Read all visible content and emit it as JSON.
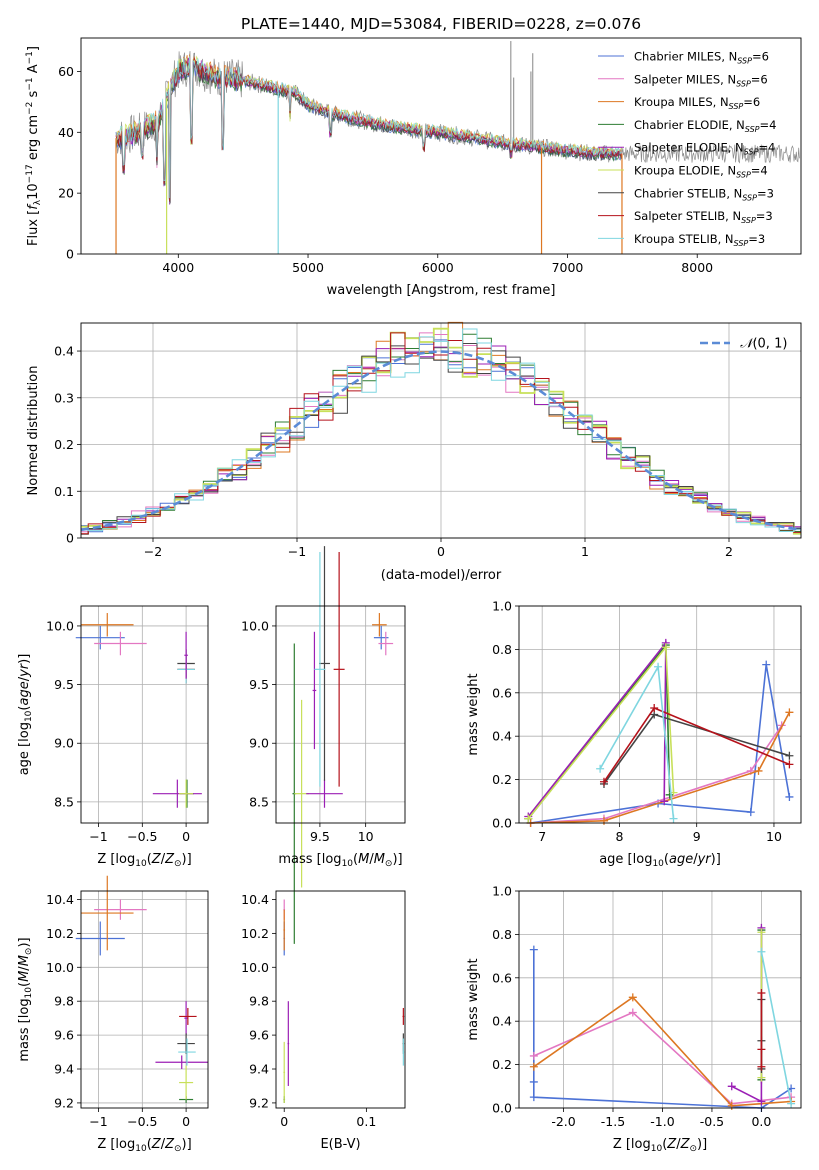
{
  "figure_title": "PLATE=1440, MJD=53084, FIBERID=0228, z=0.076",
  "colors": {
    "chabrier_miles": "#4c72d6",
    "salpeter_miles": "#e377c2",
    "kroupa_miles": "#dd7722",
    "chabrier_elodie": "#2e7d32",
    "salpeter_elodie": "#9b1fb5",
    "kroupa_elodie": "#c8e05a",
    "chabrier_stelib": "#444444",
    "salpeter_stelib": "#b5121b",
    "kroupa_stelib": "#7fd6e0",
    "gaussian": "#5b8bd6",
    "grid": "#b0b0b0"
  },
  "legend_series": [
    {
      "name": "Chabrier MILES, N_SSP=6",
      "color_key": "chabrier_miles"
    },
    {
      "name": "Salpeter MILES, N_SSP=6",
      "color_key": "salpeter_miles"
    },
    {
      "name": "Kroupa MILES, N_SSP=6",
      "color_key": "kroupa_miles"
    },
    {
      "name": "Chabrier ELODIE, N_SSP=4",
      "color_key": "chabrier_elodie"
    },
    {
      "name": "Salpeter ELODIE, N_SSP=4",
      "color_key": "salpeter_elodie"
    },
    {
      "name": "Kroupa ELODIE, N_SSP=4",
      "color_key": "kroupa_elodie"
    },
    {
      "name": "Chabrier STELIB, N_SSP=3",
      "color_key": "chabrier_stelib"
    },
    {
      "name": "Salpeter STELIB, N_SSP=3",
      "color_key": "salpeter_stelib"
    },
    {
      "name": "Kroupa STELIB, N_SSP=3",
      "color_key": "kroupa_stelib"
    }
  ],
  "chart_data": [
    {
      "id": "spectrum",
      "type": "line",
      "xlabel": "wavelength [Angstrom, rest frame]",
      "ylabel": "Flux [f_λ 10^-17 erg cm^-2 s^-1 A^-1]",
      "xlim": [
        3250,
        8800
      ],
      "ylim": [
        0,
        71
      ],
      "xticks": [
        4000,
        5000,
        6000,
        7000,
        8000
      ],
      "yticks": [
        0,
        20,
        40,
        60
      ],
      "grid": false,
      "legend_position": "top-right",
      "continuum": [
        [
          3520,
          38
        ],
        [
          3700,
          40
        ],
        [
          3850,
          44
        ],
        [
          3950,
          56
        ],
        [
          4000,
          60
        ],
        [
          4100,
          62
        ],
        [
          4200,
          60
        ],
        [
          4300,
          58
        ],
        [
          4400,
          58
        ],
        [
          4500,
          57
        ],
        [
          4700,
          55
        ],
        [
          4900,
          53
        ],
        [
          5000,
          49
        ],
        [
          5200,
          46
        ],
        [
          5500,
          43
        ],
        [
          5800,
          41
        ],
        [
          6000,
          40
        ],
        [
          6300,
          38
        ],
        [
          6500,
          36.5
        ],
        [
          6800,
          35
        ],
        [
          7000,
          34
        ],
        [
          7200,
          33
        ],
        [
          7420,
          33
        ]
      ],
      "model_range": [
        3520,
        7420
      ],
      "absorption_dips": [
        [
          3580,
          28
        ],
        [
          3720,
          33
        ],
        [
          3835,
          30
        ],
        [
          3890,
          24
        ],
        [
          3934,
          18
        ],
        [
          4102,
          38
        ],
        [
          4340,
          36
        ],
        [
          4861,
          45
        ],
        [
          5175,
          40
        ],
        [
          5890,
          35
        ],
        [
          6563,
          33
        ]
      ],
      "dropouts": [
        [
          3520,
          0
        ],
        [
          3910,
          0
        ],
        [
          4770,
          0
        ],
        [
          6800,
          0
        ],
        [
          7420,
          0
        ]
      ],
      "spikes": [
        [
          6563,
          70
        ],
        [
          6585,
          58
        ],
        [
          6718,
          60
        ],
        [
          6732,
          66
        ]
      ]
    },
    {
      "id": "residual_hist",
      "type": "histogram",
      "xlabel": "(data-model)/error",
      "ylabel": "Normed distribution",
      "xlim": [
        -2.5,
        2.5
      ],
      "ylim": [
        0,
        0.46
      ],
      "xticks": [
        -2,
        -1,
        0,
        1,
        2
      ],
      "yticks": [
        0,
        0.1,
        0.2,
        0.3,
        0.4
      ],
      "grid": true,
      "legend": "N(0,1)",
      "legend_position": "top-right",
      "bin_width": 0.1,
      "gaussian": {
        "mean": 0,
        "sigma": 1
      }
    },
    {
      "id": "age_vs_Z",
      "type": "errorbar",
      "xlabel": "Z [log10(Z/Z_sun)]",
      "ylabel": "age [log10(age/yr)]",
      "xlim": [
        -1.2,
        0.25
      ],
      "ylim": [
        8.32,
        10.17
      ],
      "xticks": [
        -1.0,
        -0.5,
        0.0
      ],
      "yticks": [
        8.5,
        9.0,
        9.5,
        10.0
      ],
      "grid": true,
      "points": [
        {
          "series": "chabrier_miles",
          "x": -0.98,
          "xerr": 0.28,
          "y": 9.9,
          "yerr": 0.1
        },
        {
          "series": "salpeter_miles",
          "x": -0.75,
          "xerr": 0.3,
          "y": 9.85,
          "yerr": 0.1
        },
        {
          "series": "kroupa_miles",
          "x": -0.9,
          "xerr": 0.3,
          "y": 10.01,
          "yerr": 0.1
        },
        {
          "series": "chabrier_elodie",
          "x": 0.01,
          "xerr": 0.08,
          "y": 8.57,
          "yerr": 0.12
        },
        {
          "series": "salpeter_elodie",
          "x": -0.1,
          "xerr": 0.28,
          "y": 8.57,
          "yerr": 0.12
        },
        {
          "series": "kroupa_elodie",
          "x": 0.0,
          "xerr": 0.08,
          "y": 8.57,
          "yerr": 0.12
        },
        {
          "series": "chabrier_stelib",
          "x": 0.0,
          "xerr": 0.1,
          "y": 9.68,
          "yerr": 0.12
        },
        {
          "series": "salpeter_stelib",
          "x": 0.0,
          "xerr": 0.1,
          "y": 9.63,
          "yerr": 0.12
        },
        {
          "series": "kroupa_stelib",
          "x": 0.0,
          "xerr": 0.1,
          "y": 9.63,
          "yerr": 0.12
        },
        {
          "series": "salpeter_elodie",
          "x": 0.0,
          "xerr": 0.02,
          "y": 9.75,
          "yerr": 0.2
        }
      ]
    },
    {
      "id": "age_vs_mass",
      "type": "errorbar",
      "xlabel": "mass [log10(M/M_sun)]",
      "ylabel": "",
      "xlim": [
        9.02,
        10.43
      ],
      "ylim": [
        8.32,
        10.17
      ],
      "xticks": [
        9.5,
        10.0
      ],
      "yticks": [
        8.5,
        9.0,
        9.5,
        10.0
      ],
      "grid": true,
      "points": [
        {
          "series": "chabrier_miles",
          "x": 10.17,
          "xerr": 0.08,
          "y": 9.9,
          "yerr": 0.1
        },
        {
          "series": "salpeter_miles",
          "x": 10.22,
          "xerr": 0.08,
          "y": 9.85,
          "yerr": 0.1
        },
        {
          "series": "kroupa_miles",
          "x": 10.15,
          "xerr": 0.08,
          "y": 10.01,
          "yerr": 0.1
        },
        {
          "series": "chabrier_elodie",
          "x": 9.22,
          "xerr": 0.02,
          "y": 8.57,
          "yerr": 1.28
        },
        {
          "series": "kroupa_elodie",
          "x": 9.3,
          "xerr": 0.08,
          "y": 8.57,
          "yerr": 0.8
        },
        {
          "series": "salpeter_elodie",
          "x": 9.55,
          "xerr": 0.2,
          "y": 8.57,
          "yerr": 0.12
        },
        {
          "series": "salpeter_elodie",
          "x": 9.44,
          "xerr": 0.02,
          "y": 9.45,
          "yerr": 0.5
        },
        {
          "series": "chabrier_stelib",
          "x": 9.55,
          "xerr": 0.06,
          "y": 9.68,
          "yerr": 1.0
        },
        {
          "series": "salpeter_stelib",
          "x": 9.71,
          "xerr": 0.06,
          "y": 9.63,
          "yerr": 1.0
        },
        {
          "series": "kroupa_stelib",
          "x": 9.5,
          "xerr": 0.06,
          "y": 9.63,
          "yerr": 1.0
        }
      ]
    },
    {
      "id": "massweight_vs_age",
      "type": "line",
      "xlabel": "age [log10(age/yr)]",
      "ylabel": "mass weight",
      "xlim": [
        6.7,
        10.35
      ],
      "ylim": [
        0,
        1.0
      ],
      "xticks": [
        7,
        8,
        9,
        10
      ],
      "yticks": [
        0.0,
        0.2,
        0.4,
        0.6,
        0.8,
        1.0
      ],
      "grid": true,
      "series": [
        {
          "series": "chabrier_miles",
          "points": [
            [
              6.85,
              0.0
            ],
            [
              8.5,
              0.09
            ],
            [
              9.7,
              0.05
            ],
            [
              9.9,
              0.73
            ],
            [
              10.2,
              0.12
            ]
          ]
        },
        {
          "series": "salpeter_miles",
          "points": [
            [
              6.85,
              0.0
            ],
            [
              7.8,
              0.02
            ],
            [
              9.7,
              0.24
            ],
            [
              10.1,
              0.45
            ]
          ]
        },
        {
          "series": "kroupa_miles",
          "points": [
            [
              6.85,
              0.0
            ],
            [
              7.8,
              0.01
            ],
            [
              9.8,
              0.24
            ],
            [
              10.2,
              0.51
            ]
          ]
        },
        {
          "series": "chabrier_elodie",
          "points": [
            [
              6.82,
              0.02
            ],
            [
              8.6,
              0.82
            ],
            [
              8.65,
              0.13
            ]
          ]
        },
        {
          "series": "salpeter_elodie",
          "points": [
            [
              6.82,
              0.03
            ],
            [
              8.6,
              0.83
            ],
            [
              8.58,
              0.1
            ]
          ]
        },
        {
          "series": "kroupa_elodie",
          "points": [
            [
              6.82,
              0.02
            ],
            [
              8.6,
              0.81
            ],
            [
              8.7,
              0.14
            ]
          ]
        },
        {
          "series": "chabrier_stelib",
          "points": [
            [
              7.8,
              0.18
            ],
            [
              8.45,
              0.5
            ],
            [
              10.2,
              0.31
            ]
          ]
        },
        {
          "series": "salpeter_stelib",
          "points": [
            [
              7.8,
              0.19
            ],
            [
              8.45,
              0.53
            ],
            [
              10.2,
              0.27
            ]
          ]
        },
        {
          "series": "kroupa_stelib",
          "points": [
            [
              7.75,
              0.25
            ],
            [
              8.5,
              0.72
            ],
            [
              8.7,
              0.02
            ]
          ]
        }
      ]
    },
    {
      "id": "mass_vs_Z",
      "type": "errorbar",
      "xlabel": "Z [log10(Z/Z_sun)]",
      "ylabel": "mass [log10(M/M_sun)]",
      "xlim": [
        -1.2,
        0.25
      ],
      "ylim": [
        9.17,
        10.45
      ],
      "xticks": [
        -1.0,
        -0.5,
        0.0
      ],
      "yticks": [
        9.2,
        9.4,
        9.6,
        9.8,
        10.0,
        10.2,
        10.4
      ],
      "grid": true,
      "points": [
        {
          "series": "chabrier_miles",
          "x": -0.98,
          "xerr": 0.28,
          "y": 10.17,
          "yerr": 0.1
        },
        {
          "series": "salpeter_miles",
          "x": -0.75,
          "xerr": 0.3,
          "y": 10.34,
          "yerr": 0.06
        },
        {
          "series": "kroupa_miles",
          "x": -0.9,
          "xerr": 0.3,
          "y": 10.32,
          "yerr": 0.22
        },
        {
          "series": "chabrier_elodie",
          "x": 0.0,
          "xerr": 0.08,
          "y": 9.22,
          "yerr": 0.02
        },
        {
          "series": "salpeter_elodie",
          "x": -0.05,
          "xerr": 0.3,
          "y": 9.44,
          "yerr": 0.04
        },
        {
          "series": "salpeter_elodie",
          "x": 0.0,
          "xerr": 0.02,
          "y": 9.7,
          "yerr": 0.1
        },
        {
          "series": "kroupa_elodie",
          "x": 0.0,
          "xerr": 0.08,
          "y": 9.32,
          "yerr": 0.1
        },
        {
          "series": "chabrier_stelib",
          "x": 0.0,
          "xerr": 0.1,
          "y": 9.55,
          "yerr": 0.06
        },
        {
          "series": "salpeter_stelib",
          "x": 0.02,
          "xerr": 0.1,
          "y": 9.71,
          "yerr": 0.05
        },
        {
          "series": "kroupa_stelib",
          "x": 0.01,
          "xerr": 0.1,
          "y": 9.5,
          "yerr": 0.08
        }
      ]
    },
    {
      "id": "mass_vs_ebv",
      "type": "errorbar",
      "xlabel": "E(B-V)",
      "ylabel": "",
      "xlim": [
        -0.01,
        0.147
      ],
      "ylim": [
        9.17,
        10.45
      ],
      "xticks": [
        0.0,
        0.1
      ],
      "yticks": [
        9.2,
        9.4,
        9.6,
        9.8,
        10.0,
        10.2,
        10.4
      ],
      "grid": false,
      "points": [
        {
          "series": "chabrier_miles",
          "x": 0.0,
          "xerr": 0.001,
          "y": 10.17,
          "yerr": 0.1
        },
        {
          "series": "salpeter_miles",
          "x": 0.0,
          "xerr": 0.001,
          "y": 10.34,
          "yerr": 0.06
        },
        {
          "series": "kroupa_miles",
          "x": 0.0,
          "xerr": 0.001,
          "y": 10.22,
          "yerr": 0.12
        },
        {
          "series": "chabrier_elodie",
          "x": 0.0,
          "xerr": 0.001,
          "y": 9.22,
          "yerr": 0.02
        },
        {
          "series": "kroupa_elodie",
          "x": 0.0,
          "xerr": 0.001,
          "y": 9.38,
          "yerr": 0.18
        },
        {
          "series": "salpeter_elodie",
          "x": 0.005,
          "xerr": 0.001,
          "y": 9.55,
          "yerr": 0.25
        },
        {
          "series": "chabrier_stelib",
          "x": 0.145,
          "xerr": 0.001,
          "y": 9.55,
          "yerr": 0.06
        },
        {
          "series": "salpeter_stelib",
          "x": 0.145,
          "xerr": 0.001,
          "y": 9.71,
          "yerr": 0.05
        },
        {
          "series": "kroupa_stelib",
          "x": 0.145,
          "xerr": 0.001,
          "y": 9.5,
          "yerr": 0.08
        }
      ]
    },
    {
      "id": "massweight_vs_Z",
      "type": "line",
      "xlabel": "Z [log10(Z/Z_sun)]",
      "ylabel": "mass weight",
      "xlim": [
        -2.45,
        0.4
      ],
      "ylim": [
        0,
        1.0
      ],
      "xticks": [
        -2.0,
        -1.5,
        -1.0,
        -0.5,
        0.0
      ],
      "yticks": [
        0.0,
        0.2,
        0.4,
        0.6,
        0.8,
        1.0
      ],
      "grid": true,
      "series": [
        {
          "series": "chabrier_miles",
          "points": [
            [
              -2.3,
              0.73
            ],
            [
              -2.3,
              0.12
            ],
            [
              -2.3,
              0.05
            ],
            [
              0.0,
              0.0
            ],
            [
              0.3,
              0.09
            ]
          ]
        },
        {
          "series": "salpeter_miles",
          "points": [
            [
              -2.3,
              0.24
            ],
            [
              -1.3,
              0.44
            ],
            [
              -0.3,
              0.02
            ],
            [
              0.3,
              0.05
            ]
          ]
        },
        {
          "series": "kroupa_miles",
          "points": [
            [
              -2.3,
              0.19
            ],
            [
              -1.3,
              0.51
            ],
            [
              -0.3,
              0.01
            ],
            [
              0.3,
              0.03
            ]
          ]
        },
        {
          "series": "chabrier_elodie",
          "points": [
            [
              0.0,
              0.82
            ],
            [
              0.0,
              0.13
            ]
          ]
        },
        {
          "series": "salpeter_elodie",
          "points": [
            [
              -0.3,
              0.1
            ],
            [
              0.0,
              0.03
            ],
            [
              0.0,
              0.83
            ]
          ]
        },
        {
          "series": "kroupa_elodie",
          "points": [
            [
              0.0,
              0.81
            ],
            [
              0.0,
              0.14
            ]
          ]
        },
        {
          "series": "chabrier_stelib",
          "points": [
            [
              0.0,
              0.5
            ],
            [
              0.0,
              0.31
            ],
            [
              0.0,
              0.18
            ]
          ]
        },
        {
          "series": "salpeter_stelib",
          "points": [
            [
              0.0,
              0.53
            ],
            [
              0.0,
              0.27
            ],
            [
              0.0,
              0.19
            ]
          ]
        },
        {
          "series": "kroupa_stelib",
          "points": [
            [
              0.0,
              0.72
            ],
            [
              0.3,
              0.02
            ]
          ]
        }
      ]
    }
  ]
}
